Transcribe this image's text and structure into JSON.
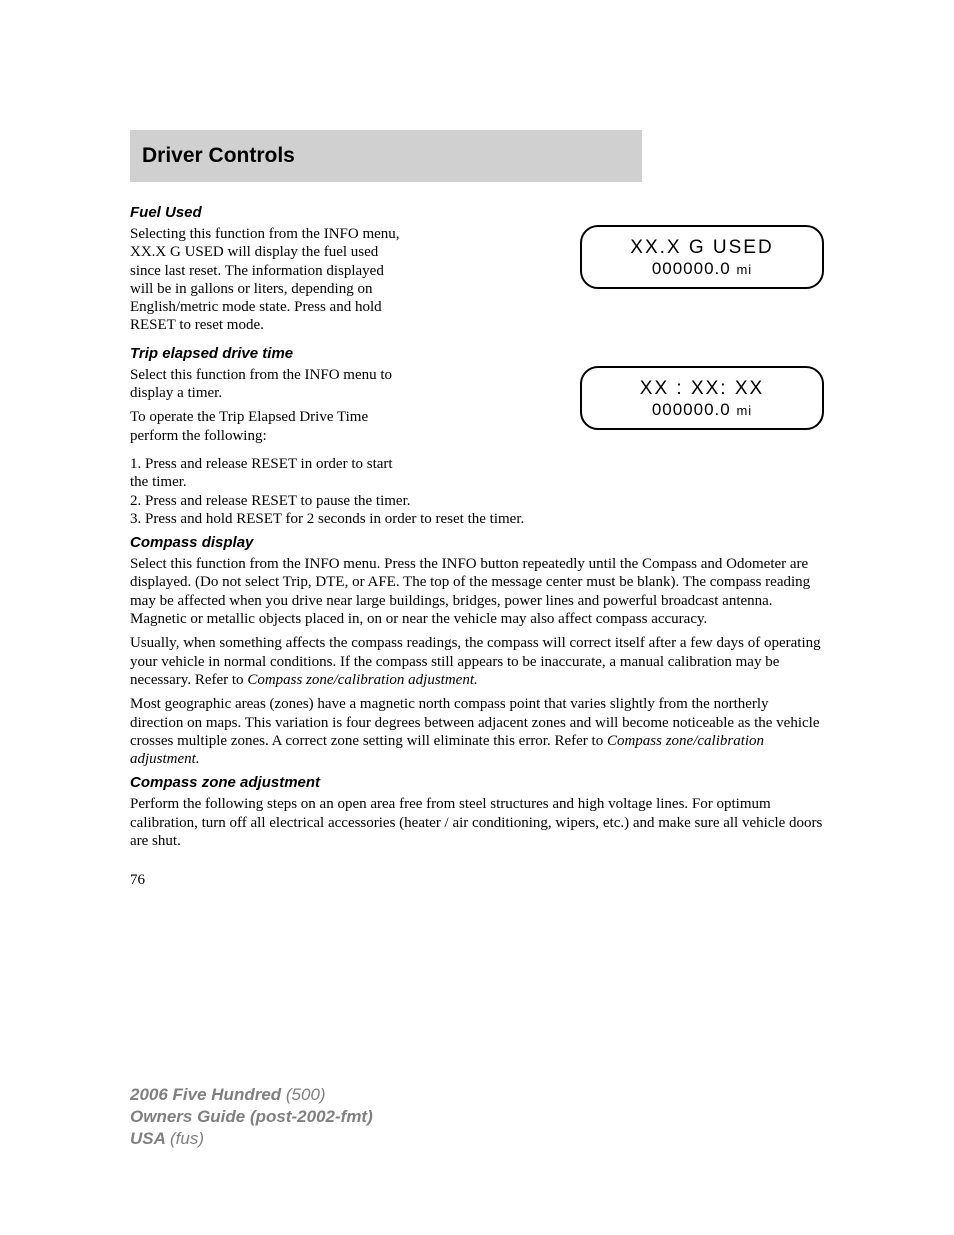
{
  "title": "Driver Controls",
  "sections": {
    "fuel_used": {
      "heading": "Fuel Used",
      "para1": "Selecting this function from the INFO menu, XX.X G USED will display the fuel used since last reset. The information displayed will be in gallons or liters, depending on English/metric mode state. Press and hold RESET to reset mode.",
      "display": {
        "line1": "XX.X G USED",
        "line2_num": "000000.0",
        "line2_unit": "mi"
      }
    },
    "trip_time": {
      "heading": "Trip elapsed drive time",
      "para1": "Select this function from the INFO menu to display a timer.",
      "para2": "To operate the Trip Elapsed Drive Time perform the following:",
      "display": {
        "line1": "XX : XX: XX",
        "line2_num": "000000.0",
        "line2_unit": "mi"
      },
      "step1": "1. Press and release RESET in order to start the timer.",
      "step2": "2. Press and release RESET to pause the timer.",
      "step3": "3. Press and hold RESET for 2 seconds in order to reset the timer."
    },
    "compass": {
      "heading": "Compass display",
      "para1": "Select this function from the INFO menu. Press the INFO button repeatedly until the Compass and Odometer are displayed. (Do not select Trip, DTE, or AFE. The top of the message center must be blank). The compass reading may be affected when you drive near large buildings, bridges, power lines and powerful broadcast antenna. Magnetic or metallic objects placed in, on or near the vehicle may also affect compass accuracy.",
      "para2a": "Usually, when something affects the compass readings, the compass will correct itself after a few days of operating your vehicle in normal conditions. If the compass still appears to be inaccurate, a manual calibration may be necessary. Refer to ",
      "para2b": "Compass zone/calibration adjustment.",
      "para3a": "Most geographic areas (zones) have a magnetic north compass point that varies slightly from the northerly direction on maps. This variation is four degrees between adjacent zones and will become noticeable as the vehicle crosses multiple zones. A correct zone setting will eliminate this error. Refer to ",
      "para3b": "Compass zone/calibration adjustment."
    },
    "compass_zone": {
      "heading": "Compass zone adjustment",
      "para1": "Perform the following steps on an open area free from steel structures and high voltage lines. For optimum calibration, turn off all electrical accessories (heater / air conditioning, wipers, etc.) and make sure all vehicle doors are shut."
    }
  },
  "page_number": "76",
  "footer": {
    "model_bold": "2006 Five Hundred ",
    "model_code": "(500)",
    "guide": "Owners Guide (post-2002-fmt)",
    "region_bold": "USA ",
    "region_code": "(fus)"
  }
}
